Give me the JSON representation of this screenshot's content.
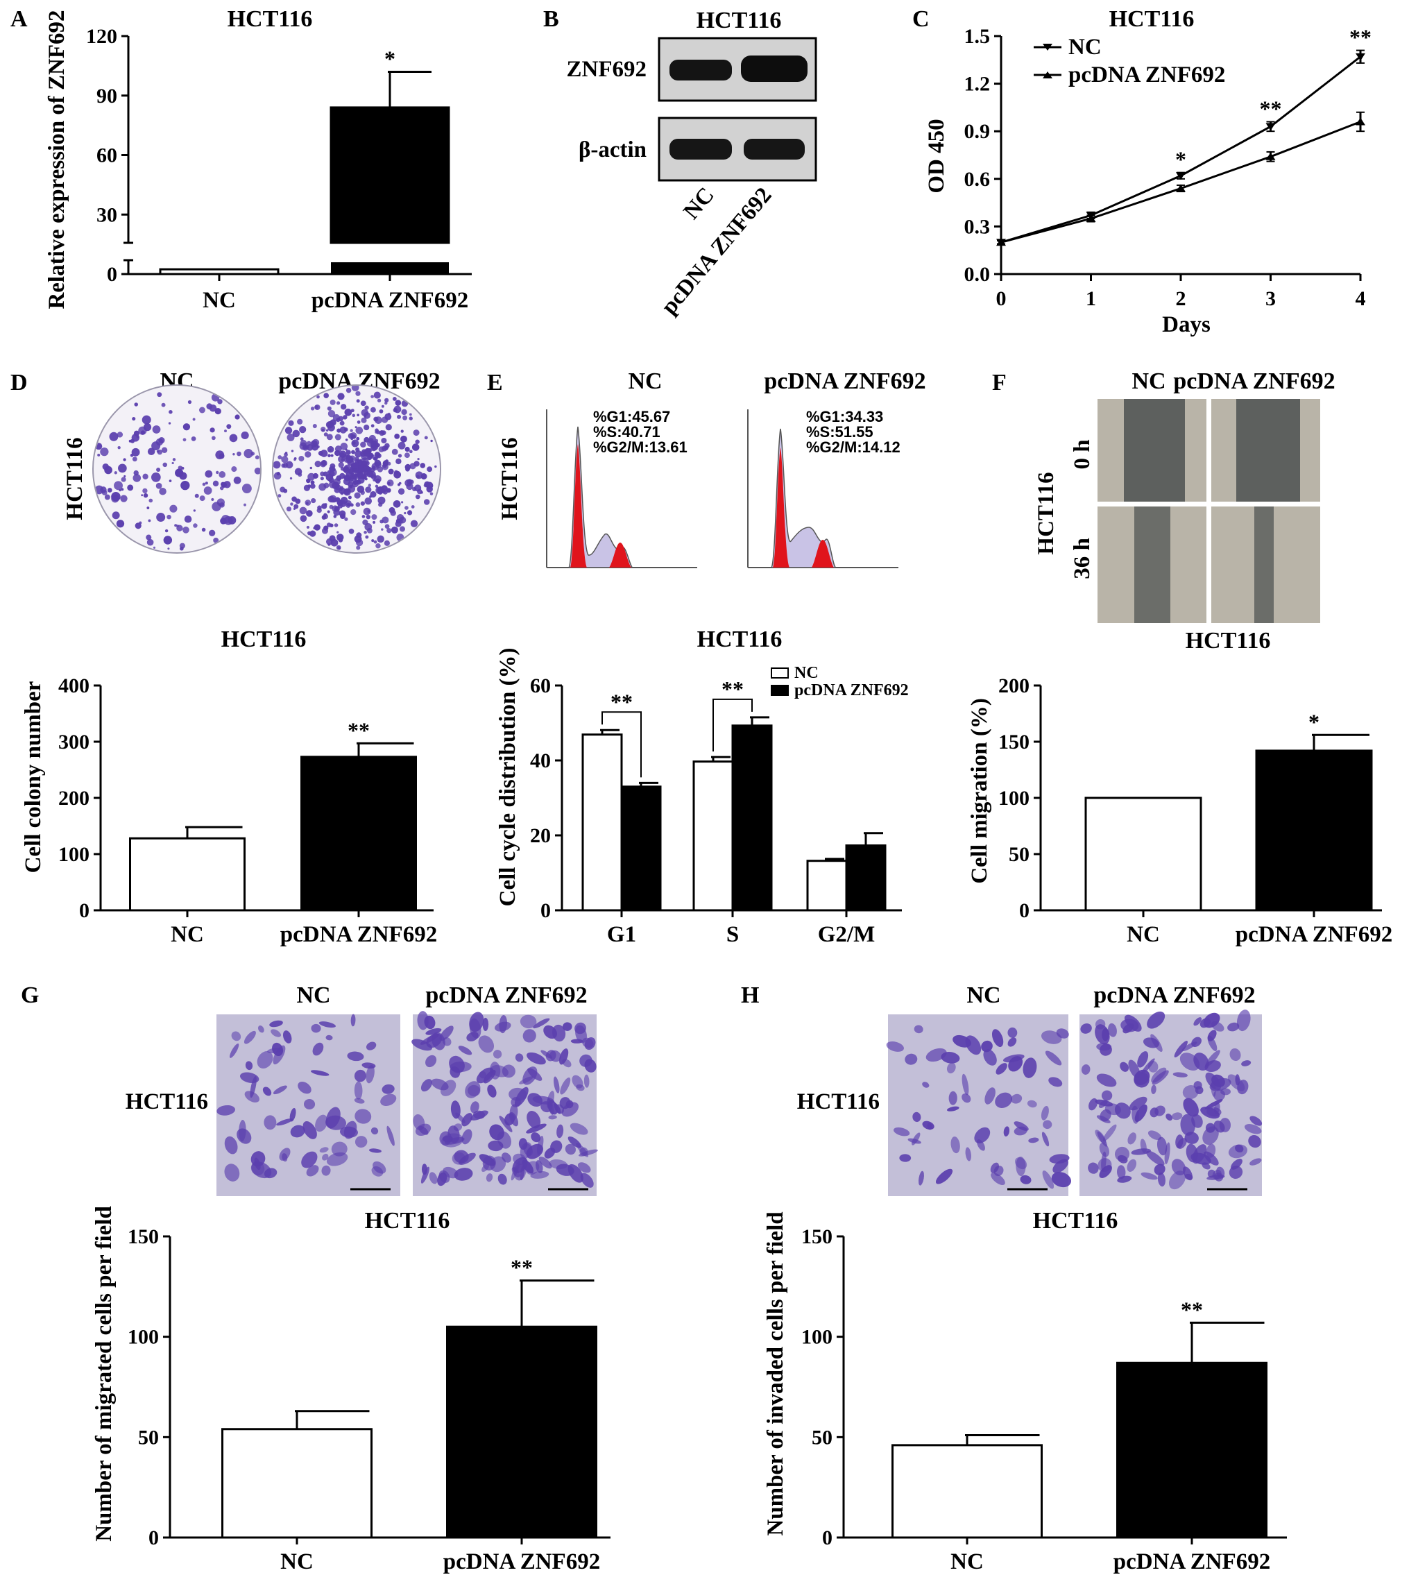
{
  "panels": {
    "A": {
      "letter": "A",
      "title": "HCT116",
      "ylabel": "Relative expression of ZNF692",
      "yticks": [
        "0",
        "30",
        "60",
        "90",
        "120"
      ],
      "categories": [
        "NC",
        "pcDNA ZNF692"
      ],
      "star": "*"
    },
    "B": {
      "letter": "B",
      "title": "HCT116",
      "rows": [
        "ZNF692",
        "β-actin"
      ],
      "lanes": [
        "NC",
        "pcDNA ZNF692"
      ]
    },
    "C": {
      "letter": "C",
      "title": "HCT116",
      "ylabel": "OD 450",
      "xlabel": "Days",
      "yticks": [
        "0.0",
        "0.3",
        "0.6",
        "0.9",
        "1.2",
        "1.5"
      ],
      "xticks": [
        "0",
        "1",
        "2",
        "3",
        "4"
      ],
      "legend": [
        "NC",
        "pcDNA ZNF692"
      ],
      "stars": [
        "*",
        "**",
        "**"
      ]
    },
    "D": {
      "letter": "D",
      "side_label": "HCT116",
      "image_labels": [
        "NC",
        "pcDNA ZNF692"
      ],
      "title": "HCT116",
      "ylabel": "Cell colony number",
      "yticks": [
        "0",
        "100",
        "200",
        "300",
        "400"
      ],
      "categories": [
        "NC",
        "pcDNA ZNF692"
      ],
      "star": "**"
    },
    "E": {
      "letter": "E",
      "side_label": "HCT116",
      "image_labels": [
        "NC",
        "pcDNA ZNF692"
      ],
      "flow_nc": [
        "%G1:45.67",
        "%S:40.71",
        "%G2/M:13.61"
      ],
      "flow_pc": [
        "%G1:34.33",
        "%S:51.55",
        "%G2/M:14.12"
      ],
      "title": "HCT116",
      "ylabel": "Cell cycle distribution (%)",
      "yticks": [
        "0",
        "20",
        "40",
        "60"
      ],
      "categories": [
        "G1",
        "S",
        "G2/M"
      ],
      "legend": [
        "NC",
        "pcDNA ZNF692"
      ],
      "stars": [
        "**",
        "**"
      ]
    },
    "F": {
      "letter": "F",
      "side_label": "HCT116",
      "image_labels": [
        "NC",
        "pcDNA ZNF692"
      ],
      "row_labels": [
        "0 h",
        "36 h"
      ],
      "title": "HCT116",
      "ylabel": "Cell migration (%)",
      "yticks": [
        "0",
        "50",
        "100",
        "150",
        "200"
      ],
      "categories": [
        "NC",
        "pcDNA ZNF692"
      ],
      "star": "*"
    },
    "G": {
      "letter": "G",
      "side_label": "HCT116",
      "image_labels": [
        "NC",
        "pcDNA ZNF692"
      ],
      "title": "HCT116",
      "ylabel": "Number of migrated cells per field",
      "yticks": [
        "0",
        "50",
        "100",
        "150"
      ],
      "categories": [
        "NC",
        "pcDNA ZNF692"
      ],
      "star": "**"
    },
    "H": {
      "letter": "H",
      "side_label": "HCT116",
      "image_labels": [
        "NC",
        "pcDNA ZNF692"
      ],
      "title": "HCT116",
      "ylabel": "Number of invaded cells per field",
      "yticks": [
        "0",
        "50",
        "100",
        "150"
      ],
      "categories": [
        "NC",
        "pcDNA ZNF692"
      ],
      "star": "**"
    }
  },
  "colors": {
    "nc_fill": "#ffffff",
    "pcdna_fill": "#000000",
    "stain": "#5b3fae",
    "flow_red": "#e0141c",
    "flow_blue": "#c9c3e6",
    "scratch_bg": "#b9b4a8",
    "scratch_gap": "#5d605e",
    "transwell_bg": "#c3bfd8"
  },
  "chart_data": [
    {
      "panel": "A",
      "type": "bar",
      "title": "HCT116",
      "ylabel": "Relative expression of ZNF692",
      "categories": [
        "NC",
        "pcDNA ZNF692"
      ],
      "values": [
        1,
        84
      ],
      "errors": [
        0,
        18
      ],
      "ylim": [
        0,
        120
      ],
      "axis_break": true
    },
    {
      "panel": "C",
      "type": "line",
      "title": "HCT116",
      "xlabel": "Days",
      "ylabel": "OD 450",
      "x": [
        0,
        1,
        2,
        3,
        4
      ],
      "ylim": [
        0,
        1.5
      ],
      "series": [
        {
          "name": "NC",
          "values": [
            0.2,
            0.37,
            0.62,
            0.93,
            1.37
          ],
          "errors": [
            0.01,
            0.02,
            0.02,
            0.03,
            0.04
          ]
        },
        {
          "name": "pcDNA ZNF692",
          "values": [
            0.2,
            0.35,
            0.54,
            0.74,
            0.96
          ],
          "errors": [
            0.01,
            0.02,
            0.02,
            0.03,
            0.06
          ]
        }
      ]
    },
    {
      "panel": "D",
      "type": "bar",
      "title": "HCT116",
      "ylabel": "Cell colony number",
      "categories": [
        "NC",
        "pcDNA ZNF692"
      ],
      "values": [
        128,
        273
      ],
      "errors": [
        20,
        24
      ],
      "ylim": [
        0,
        400
      ]
    },
    {
      "panel": "E",
      "type": "bar",
      "title": "HCT116",
      "ylabel": "Cell cycle distribution (%)",
      "categories": [
        "G1",
        "S",
        "G2/M"
      ],
      "ylim": [
        0,
        60
      ],
      "series": [
        {
          "name": "NC",
          "values": [
            46.9,
            39.7,
            13.2
          ],
          "errors": [
            1.2,
            1.2,
            0.5
          ]
        },
        {
          "name": "pcDNA ZNF692",
          "values": [
            33.0,
            49.3,
            17.3
          ],
          "errors": [
            1.0,
            2.2,
            3.3
          ]
        }
      ]
    },
    {
      "panel": "F",
      "type": "bar",
      "title": "HCT116",
      "ylabel": "Cell migration (%)",
      "categories": [
        "NC",
        "pcDNA ZNF692"
      ],
      "values": [
        100,
        142
      ],
      "errors": [
        0,
        14
      ],
      "ylim": [
        0,
        200
      ]
    },
    {
      "panel": "G",
      "type": "bar",
      "title": "HCT116",
      "ylabel": "Number of migrated cells per field",
      "categories": [
        "NC",
        "pcDNA ZNF692"
      ],
      "values": [
        54,
        105
      ],
      "errors": [
        9,
        23
      ],
      "ylim": [
        0,
        150
      ]
    },
    {
      "panel": "H",
      "type": "bar",
      "title": "HCT116",
      "ylabel": "Number of invaded cells per field",
      "categories": [
        "NC",
        "pcDNA ZNF692"
      ],
      "values": [
        46,
        87
      ],
      "errors": [
        5,
        20
      ],
      "ylim": [
        0,
        150
      ]
    }
  ]
}
